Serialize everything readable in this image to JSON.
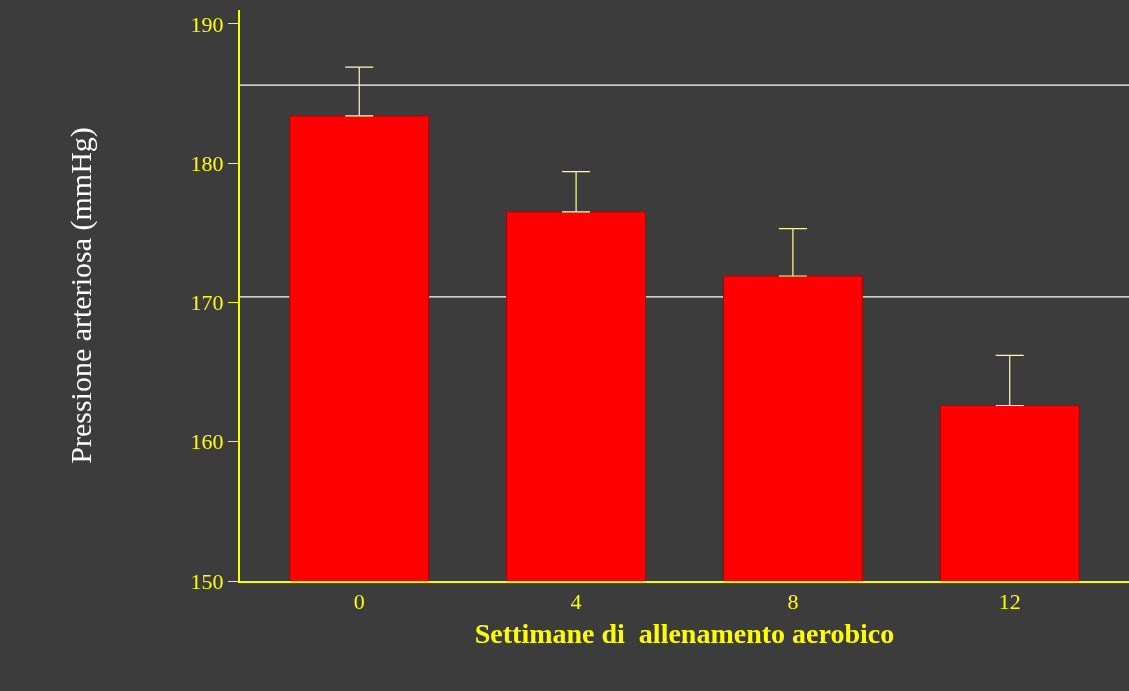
{
  "chart_data": {
    "type": "bar",
    "xlabel": "Settimane di  allenamento aerobico",
    "ylabel": "Pressione arteriosa (mmHg)",
    "categories": [
      "0",
      "4",
      "8",
      "12"
    ],
    "values": [
      183.4,
      176.5,
      171.9,
      162.6
    ],
    "errors": [
      [
        183.4,
        186.9
      ],
      [
        176.5,
        179.4
      ],
      [
        171.9,
        175.3
      ],
      [
        162.6,
        166.2
      ]
    ],
    "color": "#ff0000",
    "ylim": [
      150,
      191
    ],
    "yticks": [
      150,
      160,
      170,
      180,
      190
    ],
    "ref_lines": [
      {
        "axis": "y",
        "value": 170.4,
        "color": "#ffffff"
      },
      {
        "axis": "y",
        "value": 185.6,
        "color": "#ffffff"
      }
    ],
    "grid": false,
    "legend": false
  }
}
